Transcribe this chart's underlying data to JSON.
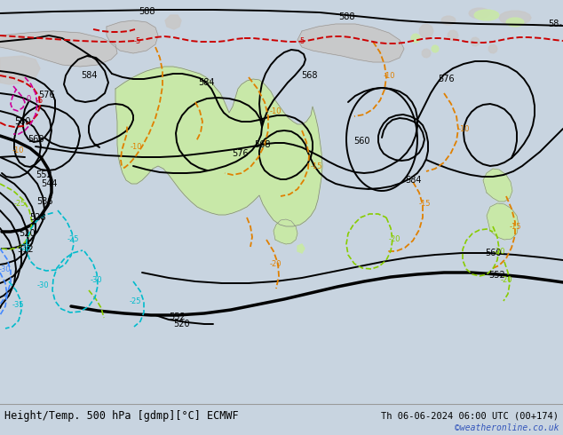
{
  "title_left": "Height/Temp. 500 hPa [gdmp][°C] ECMWF",
  "title_right": "Th 06-06-2024 06:00 UTC (00+174)",
  "watermark": "©weatheronline.co.uk",
  "bg_ocean": "#c8d4e0",
  "bg_land_gray": "#c8c8c8",
  "australia_green": "#c8e8a8",
  "fig_width": 6.34,
  "fig_height": 4.9,
  "dpi": 100,
  "bottom_bar_color": "#e0e0e0",
  "title_fontsize": 8.5,
  "watermark_color": "#3355bb",
  "col_black": "#000000",
  "col_orange": "#e08000",
  "col_red": "#cc0000",
  "col_green": "#88cc00",
  "col_cyan": "#00bbcc",
  "col_blue": "#4488ff",
  "col_magenta": "#cc0099"
}
